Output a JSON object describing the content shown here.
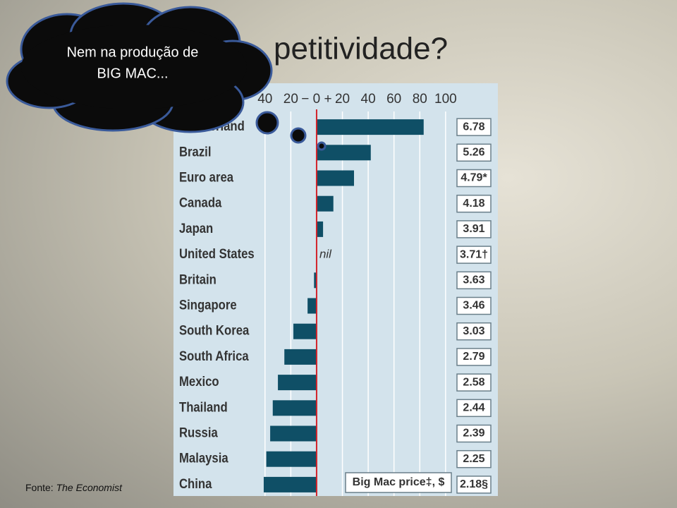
{
  "slide_title": "petitividade?",
  "thought": [
    "Nem na produção de",
    "BIG MAC..."
  ],
  "source": {
    "prefix": "Fonte:",
    "name": "The Economist"
  },
  "chart_data": {
    "type": "bar",
    "orientation": "horizontal",
    "categories": [
      "Switzerland",
      "Brazil",
      "Euro area",
      "Canada",
      "Japan",
      "United States",
      "Britain",
      "Singapore",
      "South Korea",
      "South Africa",
      "Mexico",
      "Thailand",
      "Russia",
      "Malaysia",
      "China"
    ],
    "values": [
      83,
      42,
      29,
      13,
      5,
      0,
      -2,
      -7,
      -18,
      -25,
      -30,
      -34,
      -36,
      -39,
      -41
    ],
    "value_labels": [
      null,
      null,
      null,
      null,
      null,
      "nil",
      null,
      null,
      null,
      null,
      null,
      null,
      null,
      null,
      null
    ],
    "color": "#0f4f66",
    "prices": [
      "6.78",
      "5.26",
      "4.79*",
      "4.18",
      "3.91",
      "3.71†",
      "3.63",
      "3.46",
      "3.03",
      "2.79",
      "2.58",
      "2.44",
      "2.39",
      "2.25",
      "2.18§"
    ],
    "prices_title": "Big Mac price‡, $",
    "xlim": [
      -50,
      105
    ],
    "xticks": [
      {
        "value": -40,
        "label": "40"
      },
      {
        "value": -20,
        "label": "20"
      },
      {
        "value": 0,
        "label": "− 0 +"
      },
      20,
      40,
      60,
      80,
      100
    ],
    "grid": true
  }
}
